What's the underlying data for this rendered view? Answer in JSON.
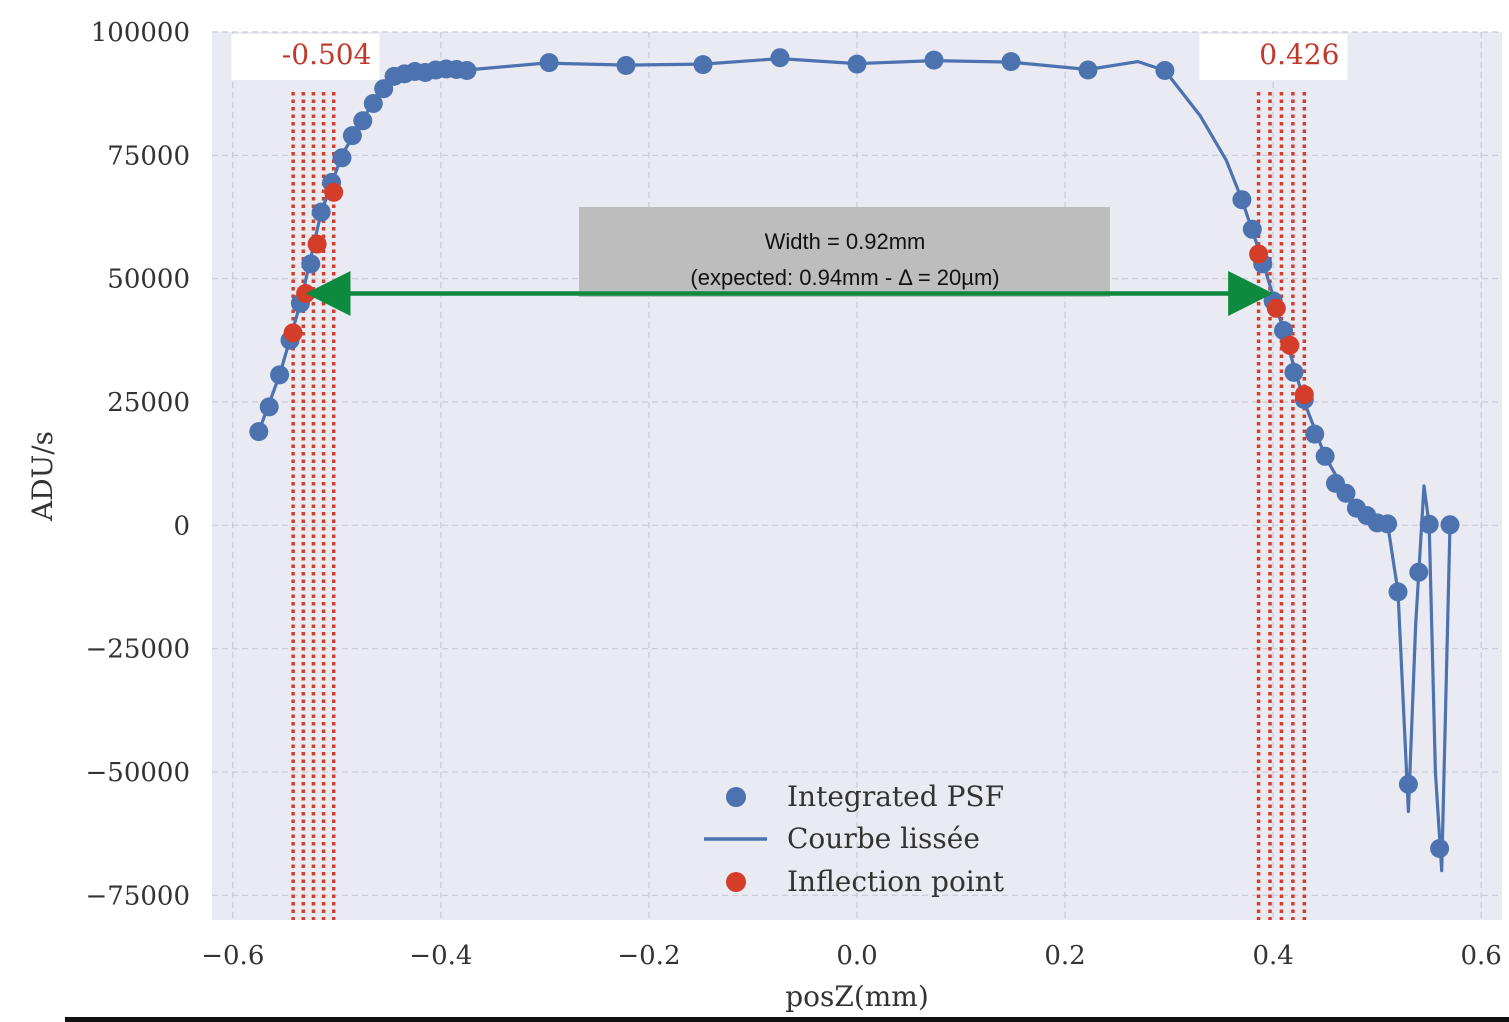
{
  "chart_data": {
    "type": "scatter",
    "title": "",
    "xlabel": "posZ(mm)",
    "ylabel": "ADU/s",
    "xlim": [
      -0.62,
      0.62
    ],
    "ylim": [
      -80000,
      100000
    ],
    "xticks": [
      -0.6,
      -0.4,
      -0.2,
      0.0,
      0.2,
      0.4,
      0.6
    ],
    "xtick_labels": [
      "−0.6",
      "−0.4",
      "−0.2",
      "0.0",
      "0.2",
      "0.4",
      "0.6"
    ],
    "yticks": [
      -75000,
      -50000,
      -25000,
      0,
      25000,
      50000,
      75000,
      100000
    ],
    "ytick_labels": [
      "−75000",
      "−50000",
      "−25000",
      "0",
      "25000",
      "50000",
      "75000",
      "100000"
    ],
    "grid": true,
    "legend_position": "bottom-center",
    "series": [
      {
        "name": "Integrated PSF",
        "kind": "points",
        "color": "#4c72b0",
        "points": [
          [
            -0.575,
            19000
          ],
          [
            -0.565,
            24000
          ],
          [
            -0.555,
            30500
          ],
          [
            -0.545,
            37500
          ],
          [
            -0.535,
            45000
          ],
          [
            -0.525,
            53000
          ],
          [
            -0.515,
            63500
          ],
          [
            -0.505,
            69500
          ],
          [
            -0.495,
            74500
          ],
          [
            -0.485,
            79000
          ],
          [
            -0.475,
            82000
          ],
          [
            -0.465,
            85500
          ],
          [
            -0.455,
            88500
          ],
          [
            -0.445,
            91000
          ],
          [
            -0.435,
            91500
          ],
          [
            -0.425,
            92000
          ],
          [
            -0.415,
            91800
          ],
          [
            -0.405,
            92300
          ],
          [
            -0.395,
            92500
          ],
          [
            -0.385,
            92400
          ],
          [
            -0.375,
            92200
          ],
          [
            -0.296,
            93800
          ],
          [
            -0.222,
            93200
          ],
          [
            -0.148,
            93400
          ],
          [
            -0.074,
            94800
          ],
          [
            0.0,
            93500
          ],
          [
            0.074,
            94300
          ],
          [
            0.148,
            94000
          ],
          [
            0.222,
            92300
          ],
          [
            0.296,
            92200
          ],
          [
            0.37,
            66000
          ],
          [
            0.38,
            60000
          ],
          [
            0.39,
            53000
          ],
          [
            0.4,
            45500
          ],
          [
            0.41,
            39500
          ],
          [
            0.42,
            31000
          ],
          [
            0.43,
            25500
          ],
          [
            0.44,
            18500
          ],
          [
            0.45,
            14000
          ],
          [
            0.46,
            8500
          ],
          [
            0.47,
            6500
          ],
          [
            0.48,
            3500
          ],
          [
            0.49,
            2000
          ],
          [
            0.5,
            500
          ],
          [
            0.51,
            300
          ],
          [
            0.52,
            -13500
          ],
          [
            0.53,
            -52500
          ],
          [
            0.54,
            -9500
          ],
          [
            0.55,
            200
          ],
          [
            0.56,
            -65500
          ],
          [
            0.57,
            100
          ]
        ]
      },
      {
        "name": "Courbe lissée",
        "kind": "line",
        "color": "#4c72b0",
        "points": [
          [
            -0.575,
            19000
          ],
          [
            -0.555,
            30500
          ],
          [
            -0.535,
            45000
          ],
          [
            -0.515,
            63500
          ],
          [
            -0.495,
            75000
          ],
          [
            -0.475,
            82500
          ],
          [
            -0.455,
            88500
          ],
          [
            -0.44,
            91000
          ],
          [
            -0.42,
            92000
          ],
          [
            -0.4,
            92400
          ],
          [
            -0.375,
            92300
          ],
          [
            -0.3,
            93700
          ],
          [
            -0.22,
            93300
          ],
          [
            -0.148,
            93500
          ],
          [
            -0.074,
            94600
          ],
          [
            0.0,
            93600
          ],
          [
            0.074,
            94200
          ],
          [
            0.148,
            93900
          ],
          [
            0.222,
            92400
          ],
          [
            0.27,
            94000
          ],
          [
            0.296,
            92200
          ],
          [
            0.33,
            83000
          ],
          [
            0.355,
            74000
          ],
          [
            0.37,
            66000
          ],
          [
            0.39,
            53500
          ],
          [
            0.41,
            39500
          ],
          [
            0.43,
            25000
          ],
          [
            0.45,
            14000
          ],
          [
            0.47,
            6500
          ],
          [
            0.49,
            2000
          ],
          [
            0.51,
            300
          ],
          [
            0.52,
            -13500
          ],
          [
            0.53,
            -58000
          ],
          [
            0.537,
            -20000
          ],
          [
            0.545,
            8000
          ],
          [
            0.55,
            0
          ],
          [
            0.556,
            -50000
          ],
          [
            0.562,
            -70000
          ],
          [
            0.57,
            100
          ]
        ]
      },
      {
        "name": "Inflection point",
        "kind": "points",
        "color": "#d43d2a",
        "points": [
          [
            -0.542,
            39000
          ],
          [
            -0.53,
            47000
          ],
          [
            -0.519,
            57000
          ],
          [
            -0.503,
            67500
          ],
          [
            0.386,
            55000
          ],
          [
            0.403,
            44000
          ],
          [
            0.416,
            36500
          ],
          [
            0.43,
            26500
          ]
        ]
      }
    ],
    "vertical_markers": [
      {
        "label": "-0.504",
        "x": -0.504,
        "band": [
          -0.542,
          -0.503
        ]
      },
      {
        "label": "0.426",
        "x": 0.426,
        "band": [
          0.386,
          0.43
        ]
      }
    ],
    "width_arrow": {
      "x1": -0.53,
      "x2": 0.4,
      "y": 47000,
      "color": "#0e8a3e"
    },
    "annotation": {
      "line1": "Width = 0.92mm",
      "line2": "(expected: 0.94mm - Δ = 20µm)"
    }
  }
}
